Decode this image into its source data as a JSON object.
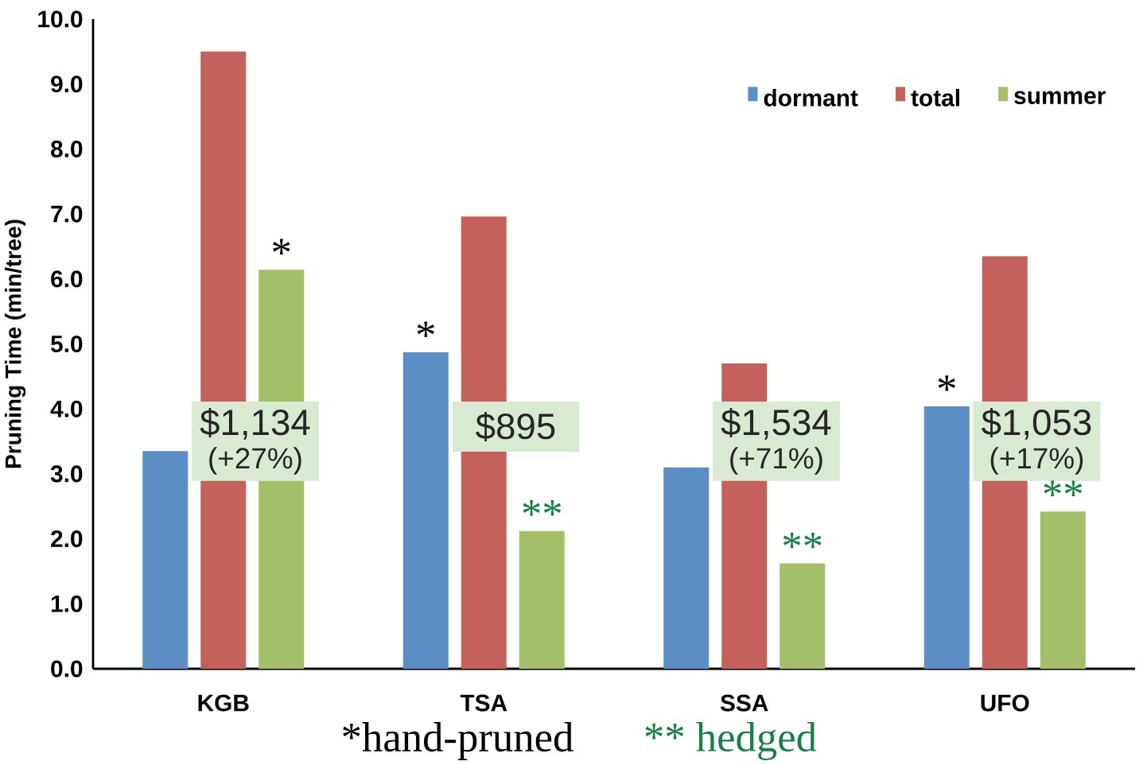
{
  "chart_data": {
    "type": "bar",
    "ylabel": "Pruning Time (min/tree)",
    "categories": [
      "KGB",
      "TSA",
      "SSA",
      "UFO"
    ],
    "series": [
      {
        "name": "dormant",
        "color": "#5b8ec4",
        "values": [
          3.35,
          4.87,
          3.1,
          4.04
        ]
      },
      {
        "name": "total",
        "color": "#c4615b",
        "values": [
          9.5,
          6.96,
          4.7,
          6.35
        ]
      },
      {
        "name": "summer",
        "color": "#a3bf67",
        "values": [
          6.14,
          2.12,
          1.62,
          2.42
        ]
      }
    ],
    "ylim": [
      0,
      10
    ],
    "yticks": [
      {
        "value": 0,
        "label": "0.0"
      },
      {
        "value": 1,
        "label": "1.0"
      },
      {
        "value": 2,
        "label": "2.0"
      },
      {
        "value": 3,
        "label": "3.0"
      },
      {
        "value": 4,
        "label": "4.0"
      },
      {
        "value": 5,
        "label": "5.0"
      },
      {
        "value": 6,
        "label": "6.0"
      },
      {
        "value": 7,
        "label": "7.0"
      },
      {
        "value": 8,
        "label": "8.0"
      },
      {
        "value": 9,
        "label": "9.0"
      },
      {
        "value": 10,
        "label": "10.0"
      }
    ],
    "legend": "top right",
    "annotations": [
      "$1,134",
      "(+27%)",
      "$895",
      "$1,534",
      "(+71%)",
      "$1,053",
      "(+17%)",
      "*",
      "*",
      "**",
      "**",
      "*",
      "**",
      "*hand-pruned",
      "** hedged"
    ]
  }
}
